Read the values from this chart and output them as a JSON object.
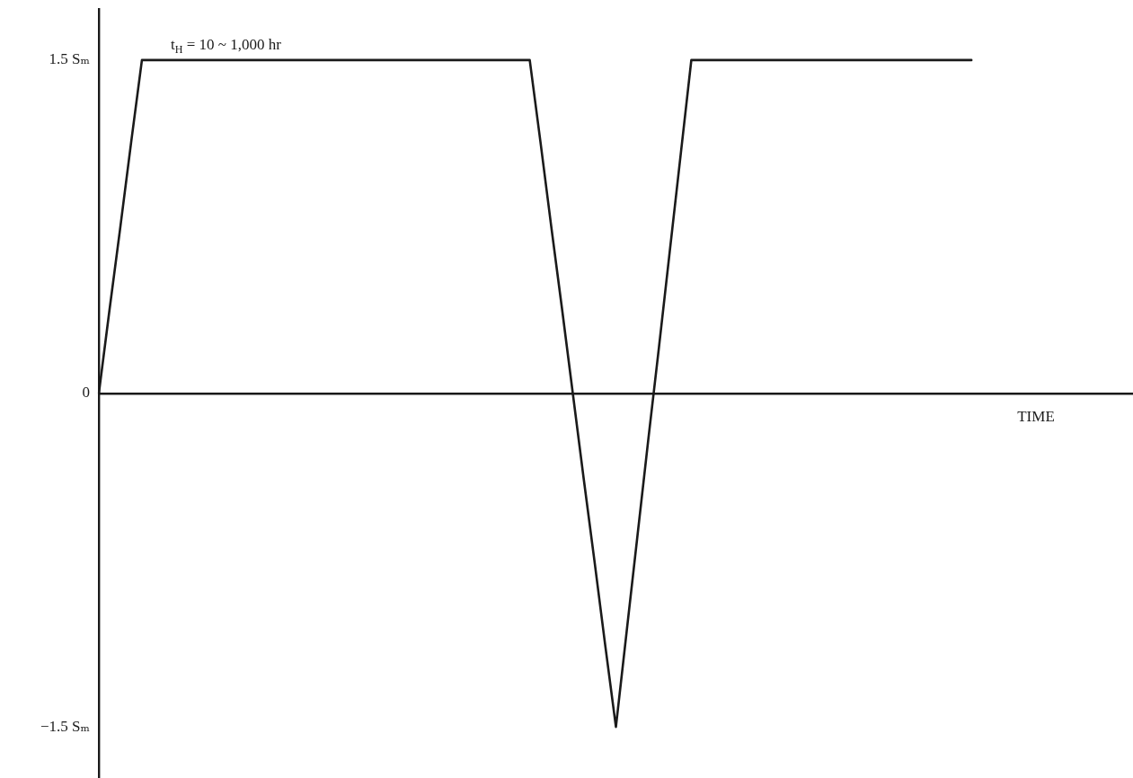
{
  "chart_data": {
    "type": "line",
    "xlabel": "TIME",
    "categories": [
      null,
      null,
      null,
      null,
      null,
      null,
      null,
      null,
      null,
      null,
      null,
      null,
      null,
      null,
      null,
      null,
      null,
      null,
      null,
      null,
      null,
      null,
      null,
      null,
      null,
      null,
      null,
      null,
      null,
      null,
      null,
      null,
      null,
      null,
      null,
      null,
      null,
      null,
      null,
      null,
      null,
      null,
      null,
      null,
      null,
      null,
      null,
      null,
      null,
      null,
      null,
      null,
      null,
      null,
      null,
      null,
      null,
      null,
      null,
      null,
      null,
      null,
      null,
      null,
      null,
      null,
      null,
      null,
      null,
      null,
      null,
      null,
      null,
      null,
      null,
      null,
      null,
      null,
      null,
      null,
      null,
      null,
      null,
      null,
      null,
      null,
      null,
      null,
      null,
      null,
      null,
      null,
      null,
      null,
      null,
      null,
      null
    ],
    "values": [
      0,
      0.38,
      0.75,
      1.13,
      1.5,
      1.5,
      1.5,
      1.5,
      1.5,
      1.5,
      1.5,
      1.5,
      1.5,
      1.5,
      1.5,
      1.5,
      1.5,
      1.5,
      1.5,
      1.5,
      1.5,
      1.5,
      1.5,
      1.5,
      1.5,
      1.5,
      1.5,
      1.5,
      1.5,
      1.5,
      1.5,
      1.5,
      1.5,
      1.5,
      1.5,
      1.5,
      1.5,
      1.5,
      1.5,
      1.5,
      1.5,
      1.13,
      0.75,
      0.38,
      0,
      -0.38,
      -0.75,
      -1.13,
      -1.5,
      -1.07,
      -0.64,
      -0.21,
      0.21,
      0.64,
      1.07,
      1.5,
      1.5,
      1.5,
      1.5,
      1.5,
      1.5,
      1.5,
      1.5,
      1.5,
      1.5,
      1.5,
      1.5,
      1.5,
      1.5,
      1.5,
      1.5,
      1.5,
      1.5,
      1.5,
      1.5,
      1.5,
      1.5,
      1.5,
      1.5,
      1.5,
      1.5,
      1.5,
      null,
      null,
      null,
      null,
      null,
      null,
      null,
      null,
      null,
      null,
      null,
      null,
      null,
      null,
      null
    ],
    "color": "#1a1a1a",
    "ylim": [
      -1.73,
      1.73
    ],
    "yticks": [
      {
        "value": 1.5,
        "label": "1.5 Sₘ"
      },
      0,
      {
        "value": -1.5,
        "label": "−1.5 Sₘ"
      }
    ],
    "tick_labels": "y",
    "marker": "none",
    "line_style": "solid",
    "annotations": [
      {
        "text": "t$_{H}$ = 10 ~ 1,000 hr",
        "y": 1.5
      }
    ]
  }
}
